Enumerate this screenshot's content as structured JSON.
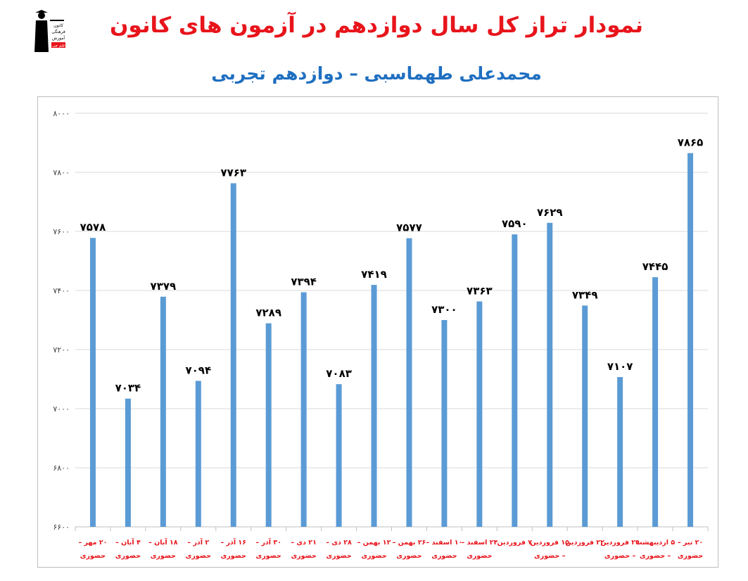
{
  "header": {
    "title": "نمودار تراز کل سال دوازدهم در آزمون های کانون",
    "subtitle": "محمدعلی طهماسبی – دوازدهم تجربی",
    "logo_text": [
      "کانون",
      "فرهنگی",
      "آموزش",
      "قلم چی"
    ]
  },
  "chart_data": {
    "type": "bar",
    "title": "نمودار تراز کل سال دوازدهم در آزمون های کانون",
    "subtitle": "محمدعلی طهماسبی – دوازدهم تجربی",
    "categories": [
      [
        "۲۰ مهر –",
        "حضوری"
      ],
      [
        "۴ آبان –",
        "حضوری"
      ],
      [
        "۱۸ آبان –",
        "حضوری"
      ],
      [
        "۲ آذر –",
        "حضوری"
      ],
      [
        "۱۶ آذر –",
        "حضوری"
      ],
      [
        "۳۰ آذر –",
        "حضوری"
      ],
      [
        "۲۱ دی –",
        "حضوری"
      ],
      [
        "۲۸ دی –",
        "حضوری"
      ],
      [
        "۱۲ بهمن –",
        "حضوری"
      ],
      [
        "۲۶ بهمن –",
        "حضوری"
      ],
      [
        "۱۰ اسفند –",
        "حضوری"
      ],
      [
        "۲۴ اسفند –",
        "حضوری"
      ],
      [
        "۷ فروردین",
        ""
      ],
      [
        "۱۵ فروردین",
        "– حضوری"
      ],
      [
        "۲۲ فروردین",
        ""
      ],
      [
        "۲۹ فروردین",
        "– حضوری"
      ],
      [
        "۵ اردیبهشت",
        "– حضوری"
      ],
      [
        "۲۰ تیر –",
        "حضوری"
      ]
    ],
    "values": [
      7578,
      7034,
      7379,
      7094,
      7763,
      7289,
      7394,
      7083,
      7419,
      7577,
      7300,
      7363,
      7590,
      7629,
      7349,
      7107,
      7445,
      7865
    ],
    "data_labels": [
      "۷۵۷۸",
      "۷۰۳۴",
      "۷۳۷۹",
      "۷۰۹۴",
      "۷۷۶۳",
      "۷۲۸۹",
      "۷۳۹۴",
      "۷۰۸۳",
      "۷۴۱۹",
      "۷۵۷۷",
      "۷۳۰۰",
      "۷۳۶۳",
      "۷۵۹۰",
      "۷۶۲۹",
      "۷۳۴۹",
      "۷۱۰۷",
      "۷۴۴۵",
      "۷۸۶۵"
    ],
    "yticks": [
      6600,
      6800,
      7000,
      7200,
      7400,
      7600,
      7800,
      8000
    ],
    "ytick_labels": [
      "۶۶۰۰",
      "۶۸۰۰",
      "۷۰۰۰",
      "۷۲۰۰",
      "۷۴۰۰",
      "۷۶۰۰",
      "۷۸۰۰",
      "۸۰۰۰"
    ],
    "ylim": [
      6600,
      8000
    ],
    "xlabel": "",
    "ylabel": "",
    "grid": true,
    "colors": {
      "bar": "#5b9bd5",
      "grid": "#d9d9d9",
      "axis_label": "#e8141b",
      "value_label": "#000000",
      "tick_label": "#404040"
    }
  }
}
